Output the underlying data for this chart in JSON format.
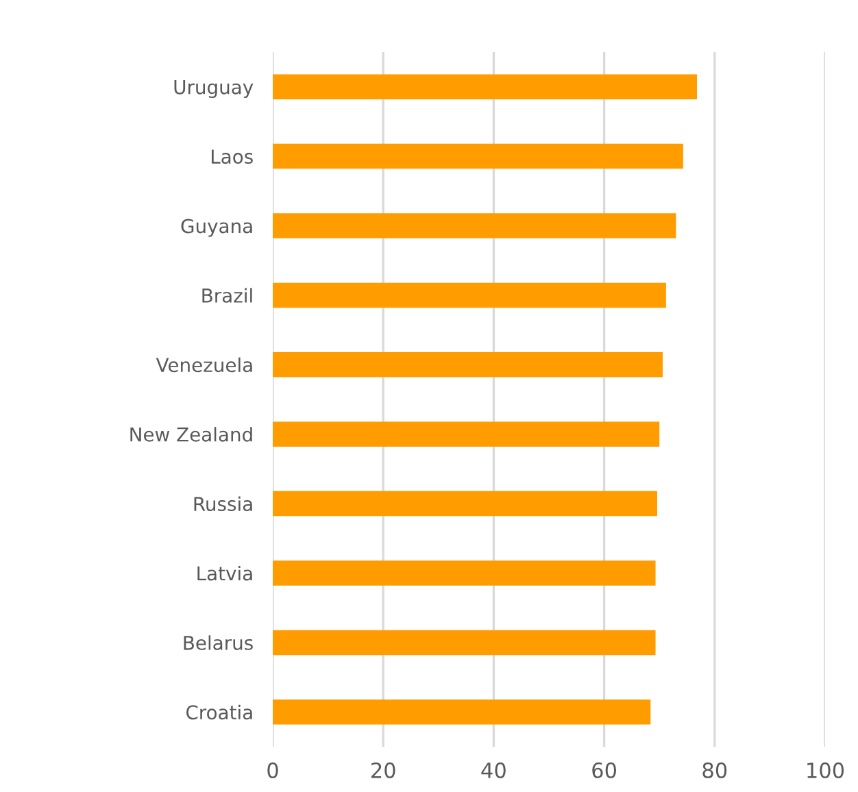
{
  "chart_data": {
    "type": "bar",
    "orientation": "horizontal",
    "categories": [
      "Uruguay",
      "Laos",
      "Guyana",
      "Brazil",
      "Venezuela",
      "New Zealand",
      "Russia",
      "Latvia",
      "Belarus",
      "Croatia"
    ],
    "values": [
      76.8,
      74.3,
      73.0,
      71.2,
      70.6,
      70.0,
      69.6,
      69.3,
      69.3,
      68.4
    ],
    "color": "#ff9c00",
    "xlim": [
      0,
      100
    ],
    "xticks": [
      0,
      20,
      40,
      60,
      80,
      100
    ],
    "grid": "x",
    "legend": false
  }
}
